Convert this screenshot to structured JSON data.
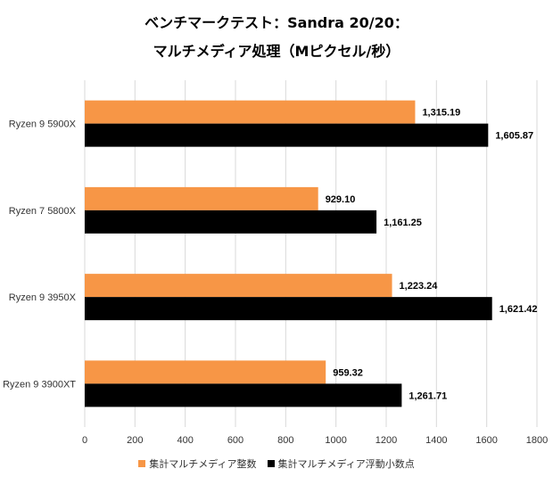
{
  "chart_data": {
    "type": "bar",
    "orientation": "horizontal",
    "title": "ベンチマークテスト：Sandra 20/20：",
    "subtitle": "マルチメディア処理（Mピクセル/秒）",
    "categories": [
      "Ryzen 9 5900X",
      "Ryzen 7 5800X",
      "Ryzen 9 3950X",
      "Ryzen 9 3900XT"
    ],
    "series": [
      {
        "name": "集計マルチメディア整数",
        "color": "#F79646",
        "values": [
          1315.19,
          929.1,
          1223.24,
          959.32
        ],
        "labels": [
          "1,315.19",
          "929.10",
          "1,223.24",
          "959.32"
        ]
      },
      {
        "name": "集計マルチメディア浮動小数点",
        "color": "#000000",
        "values": [
          1605.87,
          1161.25,
          1621.42,
          1261.71
        ],
        "labels": [
          "1,605.87",
          "1,161.25",
          "1,621.42",
          "1,261.71"
        ]
      }
    ],
    "xlim": [
      0,
      1800
    ],
    "xticks": [
      0,
      200,
      400,
      600,
      800,
      1000,
      1200,
      1400,
      1600,
      1800
    ],
    "grid": true,
    "legend_position": "bottom"
  }
}
